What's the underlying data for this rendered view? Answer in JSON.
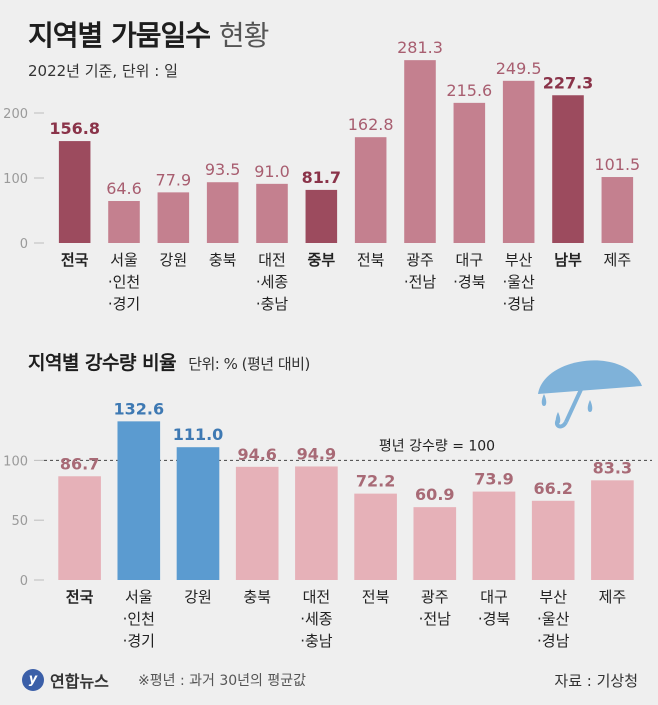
{
  "title": {
    "main": "지역별 가뭄일수",
    "sub": "현황"
  },
  "meta": "2022년 기준, 단위 : 일",
  "title2": {
    "main": "지역별 강수량 비율",
    "unit": "단위: % (평년 대비)"
  },
  "reference_label": "평년 강수량 = 100",
  "footer": {
    "logo": "연합뉴스",
    "note": "※평년 : 과거 30년의 평균값",
    "source": "자료 : 기상청"
  },
  "colors": {
    "drought_bar": "#c4808f",
    "drought_bar_highlight": "#9c4b5e",
    "drought_value": "#a85e70",
    "drought_value_highlight": "#8a3349",
    "rain_bar": "#e6b1b8",
    "rain_bar_highlight": "#5b9bd0",
    "rain_value": "#a86a76",
    "rain_value_highlight": "#3e79b3",
    "umbrella": "#7fb2d9"
  },
  "chart_data": [
    {
      "type": "bar",
      "title": "지역별 가뭄일수 현황",
      "categories": [
        [
          "전국"
        ],
        [
          "서울",
          "·인천",
          "·경기"
        ],
        [
          "강원"
        ],
        [
          "충북"
        ],
        [
          "대전",
          "·세종",
          "·충남"
        ],
        [
          "중부"
        ],
        [
          "전북"
        ],
        [
          "광주",
          "·전남"
        ],
        [
          "대구",
          "·경북"
        ],
        [
          "부산",
          "·울산",
          "·경남"
        ],
        [
          "남부"
        ],
        [
          "제주"
        ]
      ],
      "bold_categories": [
        0,
        5,
        10
      ],
      "values": [
        156.8,
        64.6,
        77.9,
        93.5,
        91.0,
        81.7,
        162.8,
        281.3,
        215.6,
        249.5,
        227.3,
        101.5
      ],
      "labels": [
        "156.8",
        "64.6",
        "77.9",
        "93.5",
        "91.0",
        "81.7",
        "162.8",
        "281.3",
        "215.6",
        "249.5",
        "227.3",
        "101.5"
      ],
      "highlight": [
        0,
        5,
        10
      ],
      "yticks": [
        "0",
        "100",
        "200"
      ],
      "ylim": [
        0,
        300
      ],
      "grid": false
    },
    {
      "type": "bar",
      "title": "지역별 강수량 비율",
      "categories": [
        [
          "전국"
        ],
        [
          "서울",
          "·인천",
          "·경기"
        ],
        [
          "강원"
        ],
        [
          "충북"
        ],
        [
          "대전",
          "·세종",
          "·충남"
        ],
        [
          "전북"
        ],
        [
          "광주",
          "·전남"
        ],
        [
          "대구",
          "·경북"
        ],
        [
          "부산",
          "·울산",
          "·경남"
        ],
        [
          "제주"
        ]
      ],
      "bold_categories": [
        0
      ],
      "values": [
        86.7,
        132.6,
        111.0,
        94.6,
        94.9,
        72.2,
        60.9,
        73.9,
        66.2,
        83.3
      ],
      "labels": [
        "86.7",
        "132.6",
        "111.0",
        "94.6",
        "94.9",
        "72.2",
        "60.9",
        "73.9",
        "66.2",
        "83.3"
      ],
      "highlight": [
        1,
        2
      ],
      "yticks": [
        "0",
        "50",
        "100"
      ],
      "ylim": [
        0,
        140
      ],
      "reference": 100,
      "grid": false
    }
  ]
}
